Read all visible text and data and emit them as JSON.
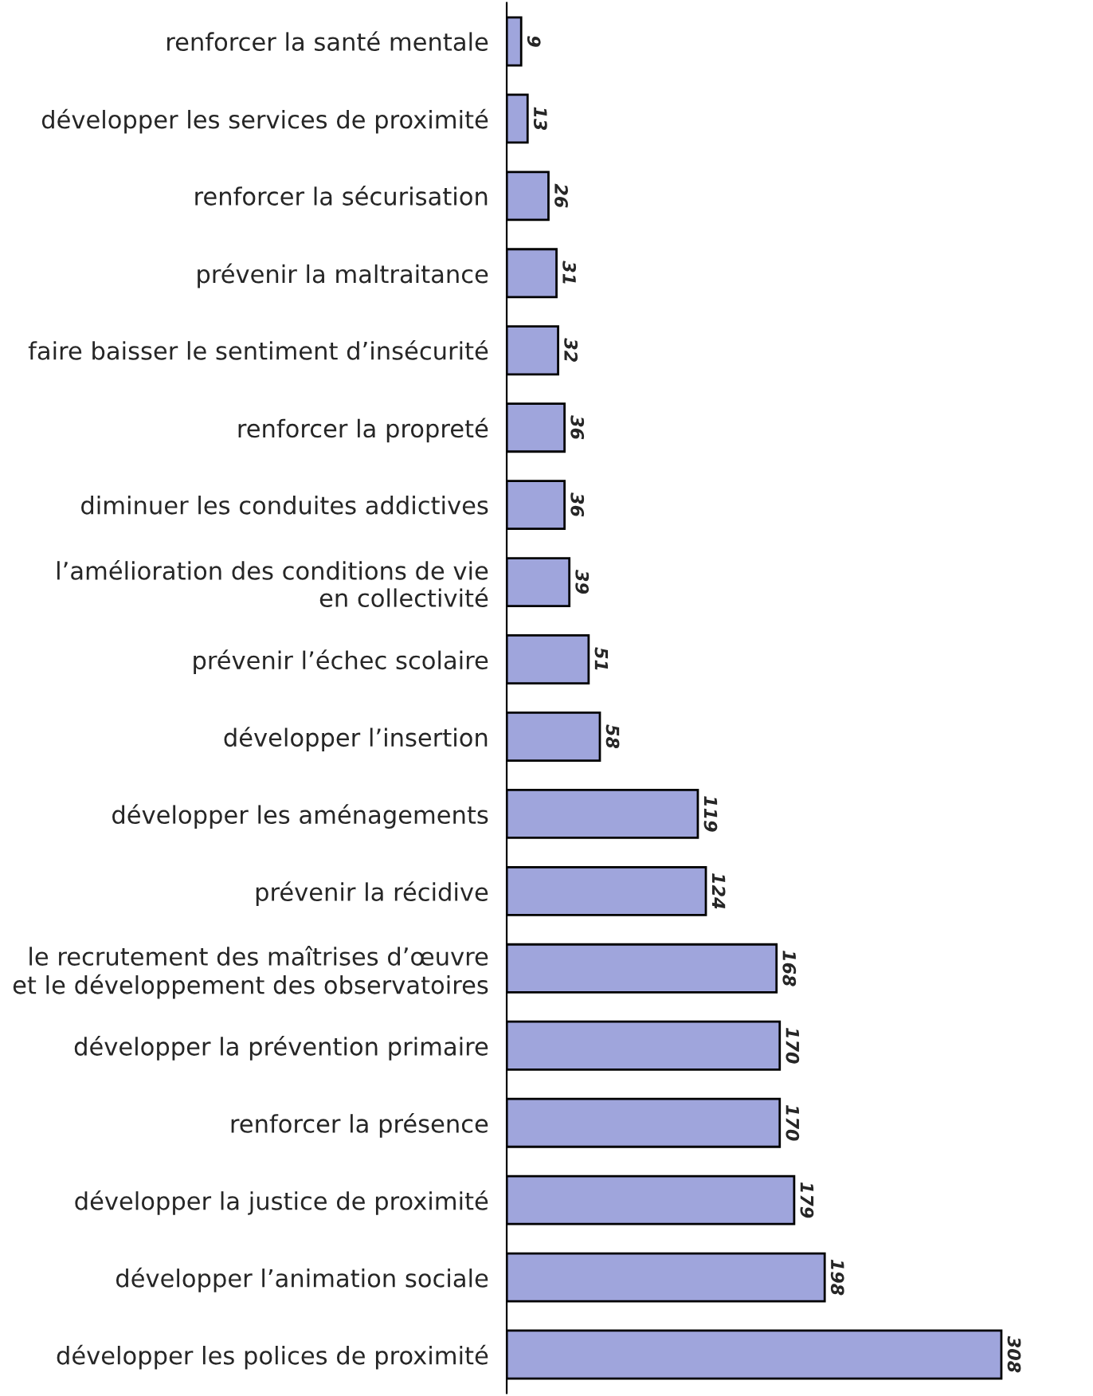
{
  "chart_data": {
    "type": "bar",
    "orientation": "horizontal",
    "categories": [
      "renforcer la santé mentale",
      "développer les services de proximité",
      "renforcer la sécurisation",
      "prévenir la maltraitance",
      "faire baisser le sentiment d’insécurité",
      "renforcer la propreté",
      "diminuer les conduites addictives",
      "l’amélioration des conditions de vie\nen collectivité",
      "prévenir l’échec scolaire",
      "développer l’insertion",
      "développer les aménagements",
      "prévenir la récidive",
      "le recrutement des maîtrises d’œuvre\net le développement des observatoires",
      "développer la prévention primaire",
      "renforcer la présence",
      "développer la justice de proximité",
      "développer l’animation sociale",
      "développer les polices de proximité"
    ],
    "values": [
      9,
      13,
      26,
      31,
      32,
      36,
      36,
      39,
      51,
      58,
      119,
      124,
      168,
      170,
      170,
      179,
      198,
      308
    ],
    "color": "#9fa5dc",
    "data_labels": true,
    "tick_labels": "y",
    "grid": false,
    "legend": false
  }
}
